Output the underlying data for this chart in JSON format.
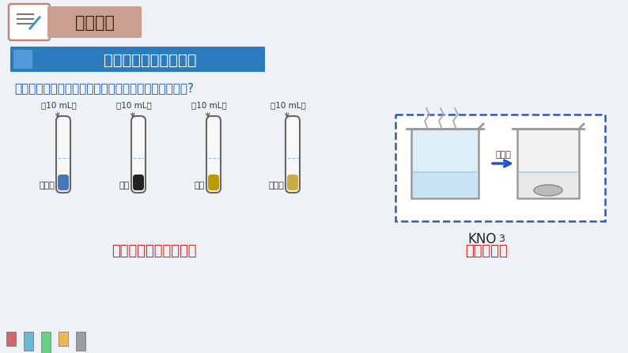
{
  "bg_color": "#eef2f7",
  "title_bar_color": "#c9a090",
  "title_text": "新知学习",
  "title_text_color": "#3a1a08",
  "section_bar_color": "#2b7bbf",
  "section_text": "一、固体物质的溶解度",
  "section_text_color": "#ffffff",
  "recall_text": "【回忆】物质在水中的溶解能力（溶解性）与什么有关?",
  "recall_color": "#1a55aa",
  "tube_labels": [
    "硫酸铜",
    "酒精",
    "泥沙",
    "食用油"
  ],
  "tube_water_label": "加10 mL水",
  "tube_fill_colors": [
    "#4477bb",
    "#222222",
    "#bb9900",
    "#ccaa44"
  ],
  "conclusion_left": "与溶质本身的性质有关",
  "conclusion_right": "与温度有关",
  "conclusion_color": "#cc2222",
  "cool_label": "冷却后",
  "dashed_box_color": "#3355bb",
  "arrow_color": "#2255cc",
  "kno3_label": "KNO",
  "kno3_sub": "3"
}
